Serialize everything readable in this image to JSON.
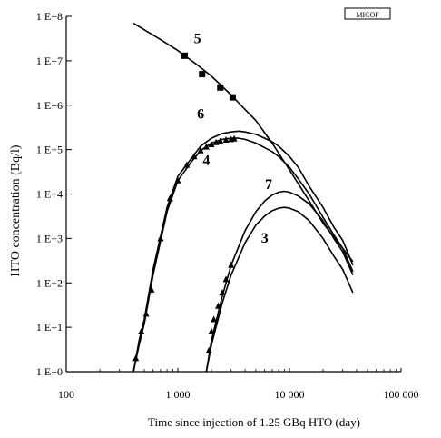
{
  "chart_data": {
    "type": "line",
    "title": "",
    "xlabel": "Time  since injection of 1.25 GBq HTO (day)",
    "ylabel": "HTO concentration (Bq/l)",
    "x_scale": "log",
    "y_scale": "log",
    "xlim": [
      100,
      100000
    ],
    "ylim": [
      1,
      100000000
    ],
    "x_ticks": [
      {
        "value": 100,
        "label": "100"
      },
      {
        "value": 1000,
        "label": "1 000"
      },
      {
        "value": 10000,
        "label": "10 000"
      },
      {
        "value": 100000,
        "label": "100 000"
      }
    ],
    "y_ticks": [
      {
        "value": 1,
        "label": "1 E+0"
      },
      {
        "value": 10,
        "label": "1 E+1"
      },
      {
        "value": 100,
        "label": "1 E+2"
      },
      {
        "value": 1000,
        "label": "1 E+3"
      },
      {
        "value": 10000,
        "label": "1 E+4"
      },
      {
        "value": 100000,
        "label": "1 E+5"
      },
      {
        "value": 1000000,
        "label": "1 E+6"
      },
      {
        "value": 10000000,
        "label": "1 E+7"
      },
      {
        "value": 100000000,
        "label": "1 E+8"
      }
    ],
    "grid": false,
    "badge": "MICOF",
    "series": [
      {
        "name": "5",
        "x": [
          400,
          700,
          1000,
          1500,
          2000,
          3000,
          4000,
          5000,
          7000,
          10000,
          15000,
          20000,
          30000,
          37000
        ],
        "y": [
          70000000,
          30000000,
          17000000,
          8000000,
          4500000,
          1700000,
          800000,
          450000,
          140000,
          35000,
          7000,
          2200,
          600,
          300
        ]
      },
      {
        "name": "6",
        "x": [
          400,
          450,
          500,
          600,
          800,
          1000,
          1300,
          1600,
          2000,
          2500,
          3000,
          3500,
          4000,
          5000,
          6000,
          7000,
          8000,
          10000,
          12000,
          15000,
          20000,
          25000,
          30000,
          37000
        ],
        "y": [
          1,
          5,
          15,
          200,
          5000,
          25000,
          60000,
          120000,
          180000,
          230000,
          250000,
          260000,
          250000,
          220000,
          180000,
          150000,
          120000,
          70000,
          40000,
          15000,
          5000,
          1800,
          900,
          250
        ]
      },
      {
        "name": "4",
        "x": [
          400,
          450,
          500,
          600,
          800,
          1000,
          1300,
          1600,
          2000,
          2500,
          3000,
          3500,
          4000,
          5000,
          6000,
          7000,
          8000,
          10000,
          12000,
          15000,
          20000,
          25000,
          30000,
          37000
        ],
        "y": [
          1,
          4,
          12,
          150,
          4000,
          20000,
          50000,
          95000,
          140000,
          170000,
          180000,
          180000,
          170000,
          140000,
          110000,
          90000,
          70000,
          40000,
          22000,
          10000,
          3000,
          1200,
          600,
          180
        ]
      },
      {
        "name": "7",
        "x": [
          1800,
          2000,
          2500,
          3000,
          4000,
          5000,
          6000,
          7000,
          8000,
          9000,
          10000,
          12000,
          15000,
          20000,
          25000,
          30000,
          37000
        ],
        "y": [
          1,
          5,
          50,
          250,
          1500,
          4000,
          7000,
          9500,
          11000,
          11500,
          11000,
          9000,
          6000,
          2500,
          1000,
          500,
          150
        ]
      },
      {
        "name": "3",
        "x": [
          1800,
          2000,
          2500,
          3000,
          4000,
          5000,
          6000,
          7000,
          8000,
          9000,
          10000,
          12000,
          15000,
          20000,
          25000,
          30000,
          37000
        ],
        "y": [
          1,
          4,
          35,
          150,
          800,
          2000,
          3200,
          4200,
          4800,
          5000,
          4800,
          4000,
          2500,
          1000,
          400,
          200,
          60
        ]
      }
    ],
    "markers": [
      {
        "symbol": "square",
        "x": [
          1150,
          1650,
          2400,
          3100
        ],
        "y": [
          13000000,
          5000000,
          2500000,
          1500000
        ]
      },
      {
        "symbol": "triangle",
        "x": [
          420,
          470,
          520,
          580,
          700,
          850,
          1000,
          1200,
          1400,
          1600,
          1800,
          2000,
          2200,
          2400,
          2700,
          3000,
          3200
        ],
        "y": [
          2,
          8,
          20,
          70,
          1000,
          8000,
          20000,
          45000,
          70000,
          95000,
          115000,
          130000,
          145000,
          155000,
          165000,
          170000,
          175000
        ]
      },
      {
        "symbol": "triangle",
        "x": [
          1900,
          2000,
          2100,
          2300,
          2500,
          2700,
          3000
        ],
        "y": [
          3,
          8,
          15,
          30,
          60,
          120,
          250
        ]
      }
    ]
  }
}
